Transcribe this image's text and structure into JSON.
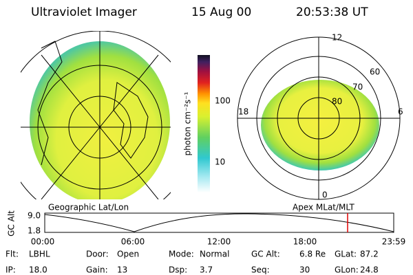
{
  "header": {
    "instrument": "Ultraviolet Imager",
    "date": "15 Aug 00",
    "time": "20:53:38 UT"
  },
  "colorbar": {
    "label": "photon cm⁻²s⁻¹",
    "ticks": [
      "100",
      "10"
    ]
  },
  "left_map": {
    "caption": "Geographic Lat/Lon"
  },
  "right_map": {
    "caption": "Apex MLat/MLT",
    "mlt_labels": [
      "12",
      "18",
      "6",
      "0"
    ],
    "mlat_labels": [
      "60",
      "70",
      "80"
    ]
  },
  "altitude_strip": {
    "axis_label": "GC Alt",
    "y_labels": [
      "9.0",
      "1.8"
    ],
    "x_labels": [
      "00:00",
      "06:00",
      "12:00",
      "18:00",
      "23:59"
    ]
  },
  "footer": {
    "rows": [
      [
        {
          "label": "Flt:",
          "value": "LBHL"
        },
        {
          "label": "Door:",
          "value": "Open"
        },
        {
          "label": "Mode:",
          "value": "Normal"
        },
        {
          "label": "GC Alt:",
          "value": "6.8 Re"
        },
        {
          "label": "GLat:",
          "value": "87.2"
        }
      ],
      [
        {
          "label": "IP:",
          "value": "18.0"
        },
        {
          "label": "Gain:",
          "value": "13"
        },
        {
          "label": "Dsp:",
          "value": "3.7"
        },
        {
          "label": "Seq:",
          "value": "30"
        },
        {
          "label": "GLon:",
          "value": "24.8"
        }
      ]
    ]
  }
}
